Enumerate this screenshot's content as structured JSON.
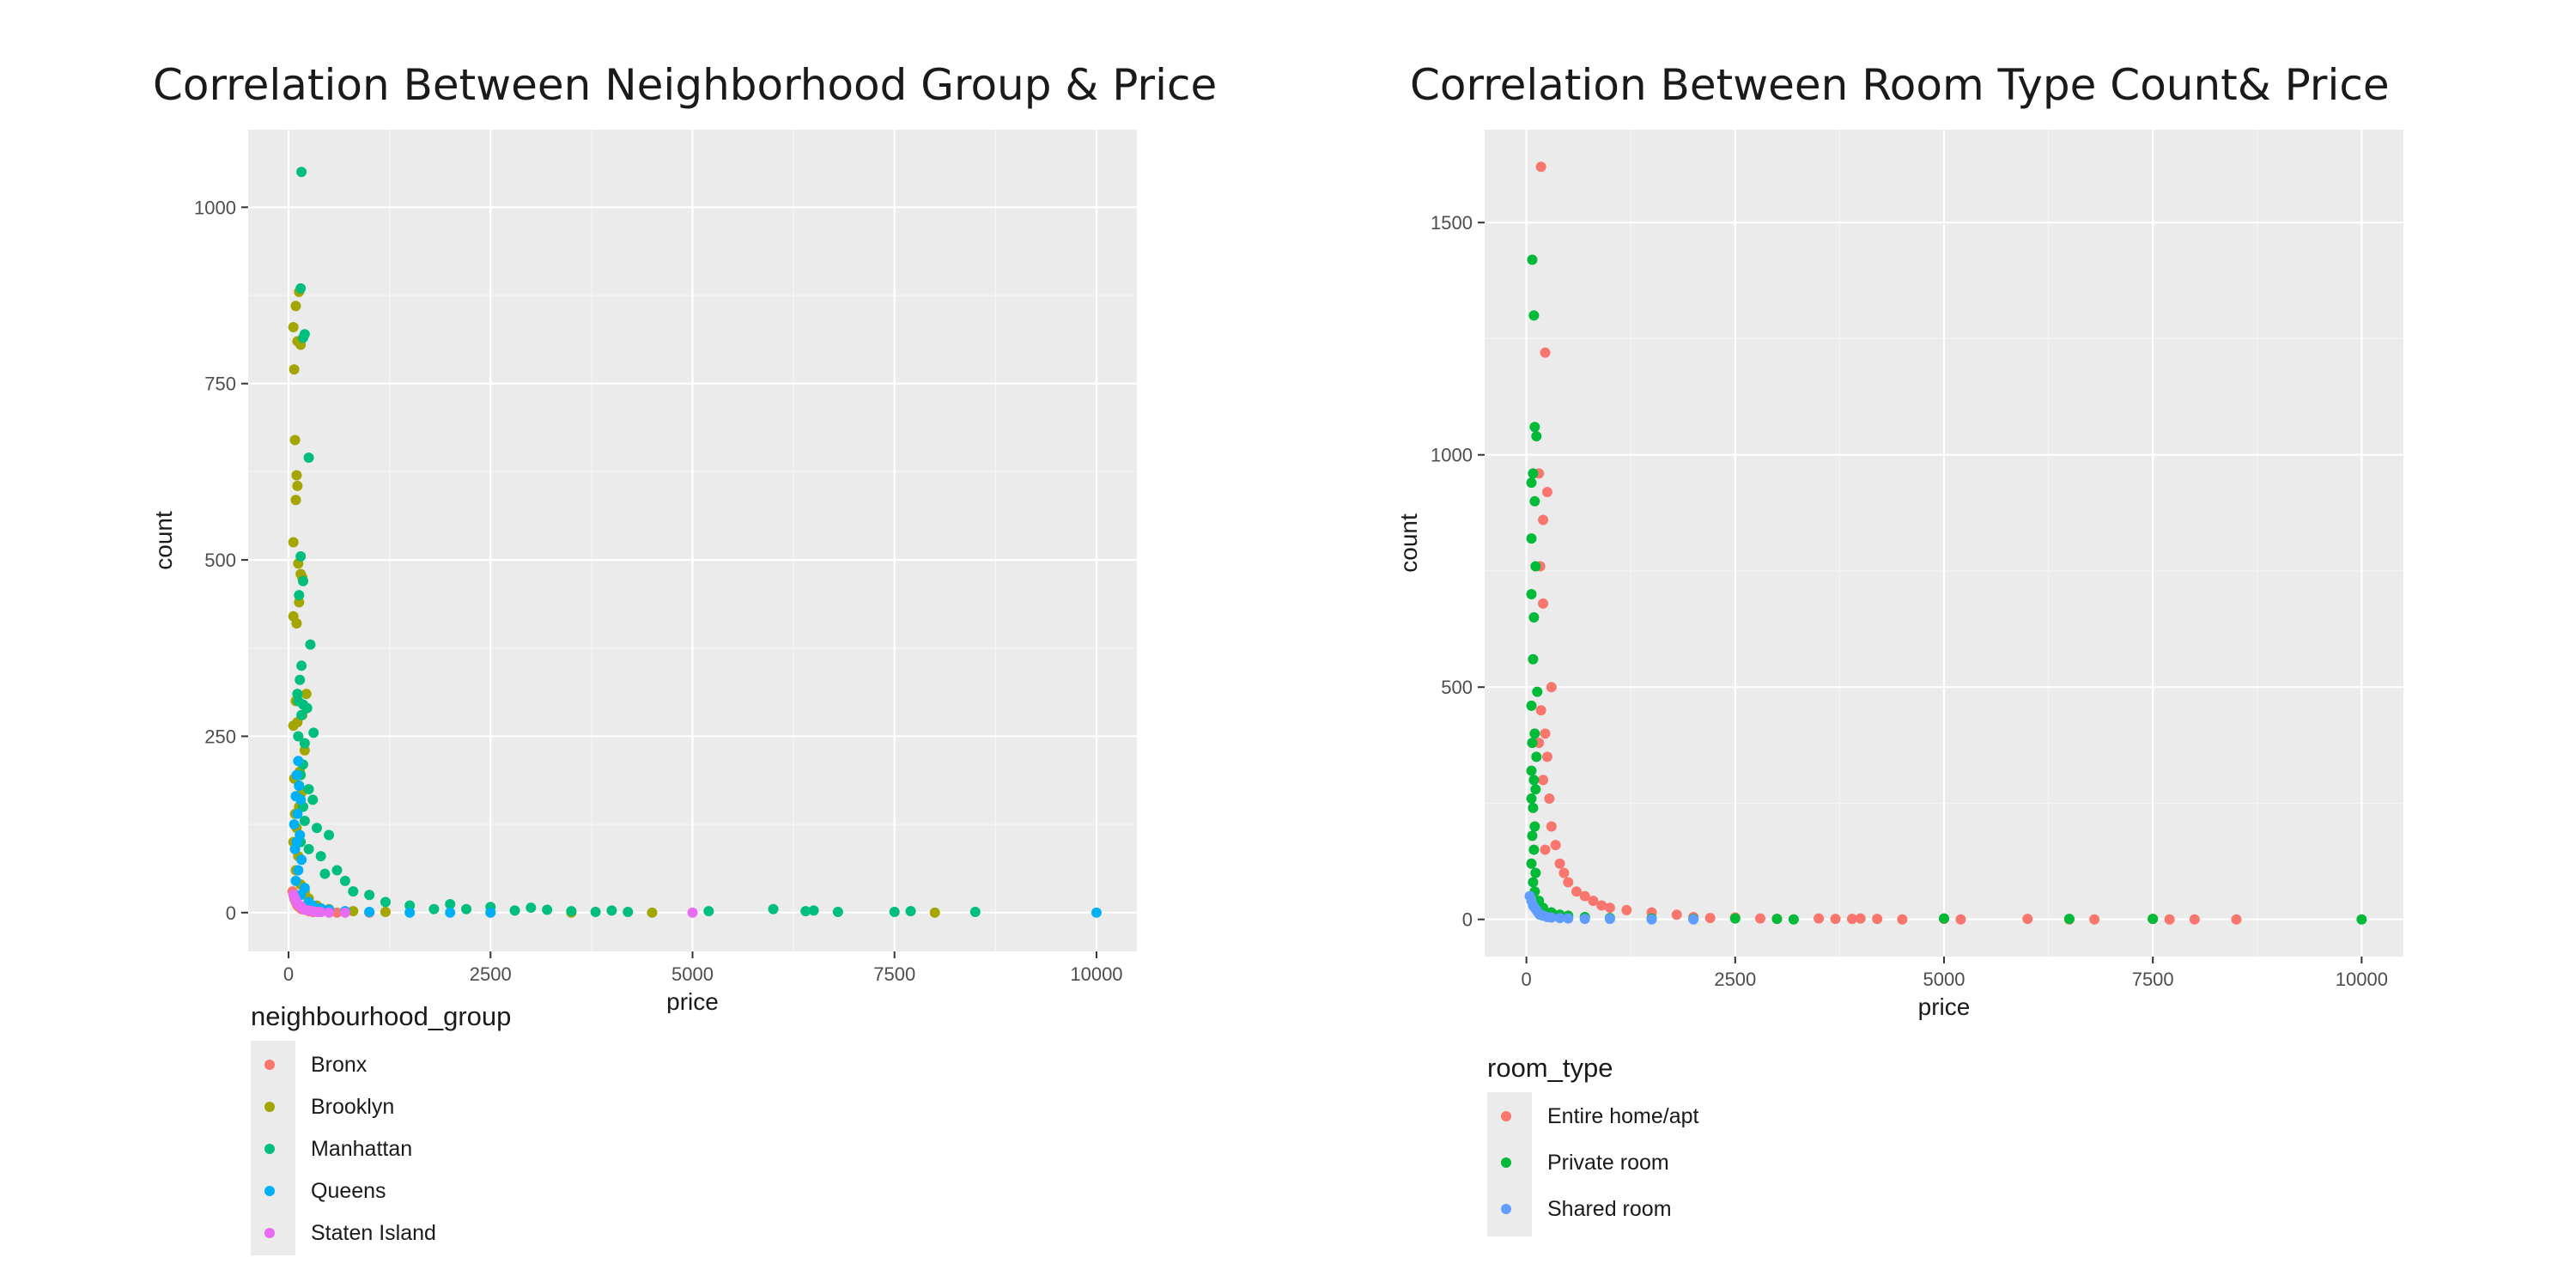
{
  "chart_data": [
    {
      "type": "scatter",
      "title": "Correlation Between Neighborhood Group & Price",
      "xlabel": "price",
      "ylabel": "count",
      "xlim": [
        -500,
        10500
      ],
      "ylim": [
        -55,
        1110
      ],
      "xticks": [
        0,
        2500,
        5000,
        7500,
        10000
      ],
      "yticks": [
        0,
        250,
        500,
        750,
        1000
      ],
      "grid": true,
      "legend": {
        "title": "neighbourhood_group",
        "placement": "bottom-left"
      },
      "series": [
        {
          "name": "Bronx",
          "color": "#F8766D",
          "points": [
            [
              50,
              30
            ],
            [
              70,
              20
            ],
            [
              90,
              15
            ],
            [
              110,
              10
            ],
            [
              130,
              8
            ],
            [
              160,
              5
            ],
            [
              200,
              4
            ],
            [
              250,
              2
            ],
            [
              300,
              1
            ],
            [
              400,
              1
            ],
            [
              600,
              0
            ],
            [
              1000,
              0
            ],
            [
              2500,
              0
            ]
          ]
        },
        {
          "name": "Brooklyn",
          "color": "#A3A500",
          "points": [
            [
              60,
              830
            ],
            [
              70,
              770
            ],
            [
              90,
              860
            ],
            [
              110,
              810
            ],
            [
              130,
              880
            ],
            [
              150,
              805
            ],
            [
              80,
              670
            ],
            [
              100,
              620
            ],
            [
              110,
              605
            ],
            [
              90,
              585
            ],
            [
              60,
              525
            ],
            [
              150,
              480
            ],
            [
              170,
              475
            ],
            [
              120,
              495
            ],
            [
              130,
              440
            ],
            [
              60,
              420
            ],
            [
              100,
              410
            ],
            [
              220,
              310
            ],
            [
              90,
              300
            ],
            [
              170,
              280
            ],
            [
              60,
              265
            ],
            [
              110,
              270
            ],
            [
              200,
              230
            ],
            [
              140,
              200
            ],
            [
              70,
              190
            ],
            [
              160,
              170
            ],
            [
              80,
              140
            ],
            [
              130,
              150
            ],
            [
              100,
              120
            ],
            [
              60,
              100
            ],
            [
              120,
              80
            ],
            [
              90,
              60
            ],
            [
              150,
              40
            ],
            [
              200,
              30
            ],
            [
              250,
              20
            ],
            [
              350,
              10
            ],
            [
              500,
              5
            ],
            [
              800,
              2
            ],
            [
              1200,
              1
            ],
            [
              2500,
              1
            ],
            [
              3500,
              0
            ],
            [
              4500,
              0
            ],
            [
              8000,
              0
            ]
          ]
        },
        {
          "name": "Manhattan",
          "color": "#00BF7D",
          "points": [
            [
              160,
              1050
            ],
            [
              150,
              885
            ],
            [
              200,
              820
            ],
            [
              180,
              815
            ],
            [
              250,
              645
            ],
            [
              150,
              505
            ],
            [
              180,
              470
            ],
            [
              130,
              450
            ],
            [
              270,
              380
            ],
            [
              160,
              350
            ],
            [
              140,
              330
            ],
            [
              110,
              310
            ],
            [
              120,
              300
            ],
            [
              180,
              295
            ],
            [
              230,
              290
            ],
            [
              160,
              280
            ],
            [
              310,
              255
            ],
            [
              120,
              250
            ],
            [
              200,
              240
            ],
            [
              180,
              210
            ],
            [
              150,
              195
            ],
            [
              130,
              180
            ],
            [
              250,
              175
            ],
            [
              300,
              160
            ],
            [
              180,
              150
            ],
            [
              200,
              130
            ],
            [
              350,
              120
            ],
            [
              500,
              110
            ],
            [
              150,
              100
            ],
            [
              250,
              90
            ],
            [
              400,
              80
            ],
            [
              600,
              60
            ],
            [
              450,
              55
            ],
            [
              700,
              45
            ],
            [
              800,
              30
            ],
            [
              1000,
              25
            ],
            [
              1200,
              15
            ],
            [
              1500,
              10
            ],
            [
              1800,
              5
            ],
            [
              2000,
              12
            ],
            [
              2200,
              5
            ],
            [
              2500,
              8
            ],
            [
              2800,
              3
            ],
            [
              3000,
              7
            ],
            [
              3200,
              4
            ],
            [
              3500,
              2
            ],
            [
              3800,
              1
            ],
            [
              4000,
              3
            ],
            [
              4200,
              1
            ],
            [
              5200,
              2
            ],
            [
              6000,
              5
            ],
            [
              6400,
              2
            ],
            [
              6500,
              3
            ],
            [
              6800,
              1
            ],
            [
              7500,
              1
            ],
            [
              7700,
              2
            ],
            [
              8500,
              1
            ]
          ]
        },
        {
          "name": "Queens",
          "color": "#00B0F6",
          "points": [
            [
              120,
              215
            ],
            [
              100,
              195
            ],
            [
              130,
              180
            ],
            [
              90,
              165
            ],
            [
              150,
              160
            ],
            [
              110,
              140
            ],
            [
              70,
              125
            ],
            [
              140,
              110
            ],
            [
              100,
              100
            ],
            [
              80,
              90
            ],
            [
              160,
              75
            ],
            [
              120,
              60
            ],
            [
              90,
              45
            ],
            [
              200,
              35
            ],
            [
              150,
              25
            ],
            [
              250,
              15
            ],
            [
              300,
              10
            ],
            [
              400,
              6
            ],
            [
              500,
              4
            ],
            [
              700,
              2
            ],
            [
              1000,
              1
            ],
            [
              1500,
              0
            ],
            [
              2000,
              0
            ],
            [
              2500,
              0
            ],
            [
              10000,
              0
            ]
          ]
        },
        {
          "name": "Staten Island",
          "color": "#E76BF3",
          "points": [
            [
              60,
              25
            ],
            [
              80,
              20
            ],
            [
              100,
              15
            ],
            [
              120,
              12
            ],
            [
              140,
              10
            ],
            [
              160,
              8
            ],
            [
              180,
              6
            ],
            [
              200,
              4
            ],
            [
              250,
              3
            ],
            [
              300,
              2
            ],
            [
              350,
              1
            ],
            [
              400,
              1
            ],
            [
              500,
              0
            ],
            [
              700,
              0
            ],
            [
              5000,
              0
            ]
          ]
        }
      ]
    },
    {
      "type": "scatter",
      "title": "Correlation Between Room Type Count& Price",
      "xlabel": "price",
      "ylabel": "count",
      "xlim": [
        -500,
        10500
      ],
      "ylim": [
        -80,
        1700
      ],
      "xticks": [
        0,
        2500,
        5000,
        7500,
        10000
      ],
      "yticks": [
        0,
        500,
        1000,
        1500
      ],
      "grid": true,
      "legend": {
        "title": "room_type",
        "placement": "bottom-left"
      },
      "series": [
        {
          "name": "Entire home/apt",
          "color": "#F8766D",
          "points": [
            [
              175,
              1620
            ],
            [
              225,
              1220
            ],
            [
              250,
              920
            ],
            [
              150,
              960
            ],
            [
              200,
              860
            ],
            [
              165,
              760
            ],
            [
              200,
              680
            ],
            [
              300,
              500
            ],
            [
              175,
              450
            ],
            [
              225,
              400
            ],
            [
              150,
              380
            ],
            [
              250,
              350
            ],
            [
              200,
              300
            ],
            [
              275,
              260
            ],
            [
              300,
              200
            ],
            [
              350,
              160
            ],
            [
              225,
              150
            ],
            [
              400,
              120
            ],
            [
              450,
              100
            ],
            [
              500,
              80
            ],
            [
              600,
              60
            ],
            [
              700,
              50
            ],
            [
              800,
              40
            ],
            [
              900,
              30
            ],
            [
              1000,
              25
            ],
            [
              1200,
              20
            ],
            [
              1500,
              15
            ],
            [
              1800,
              10
            ],
            [
              2000,
              5
            ],
            [
              2200,
              3
            ],
            [
              2500,
              4
            ],
            [
              2800,
              2
            ],
            [
              3000,
              1
            ],
            [
              3500,
              2
            ],
            [
              3700,
              1
            ],
            [
              3900,
              1
            ],
            [
              4000,
              2
            ],
            [
              4200,
              1
            ],
            [
              4500,
              0
            ],
            [
              5000,
              1
            ],
            [
              5200,
              0
            ],
            [
              6000,
              1
            ],
            [
              6500,
              0
            ],
            [
              6800,
              0
            ],
            [
              7500,
              1
            ],
            [
              7700,
              0
            ],
            [
              8000,
              0
            ],
            [
              8500,
              0
            ]
          ]
        },
        {
          "name": "Private room",
          "color": "#00BA38",
          "points": [
            [
              70,
              1420
            ],
            [
              90,
              1300
            ],
            [
              100,
              1060
            ],
            [
              120,
              1040
            ],
            [
              80,
              960
            ],
            [
              60,
              940
            ],
            [
              100,
              900
            ],
            [
              60,
              820
            ],
            [
              110,
              760
            ],
            [
              60,
              700
            ],
            [
              90,
              650
            ],
            [
              80,
              560
            ],
            [
              130,
              490
            ],
            [
              60,
              460
            ],
            [
              100,
              400
            ],
            [
              70,
              380
            ],
            [
              120,
              350
            ],
            [
              60,
              320
            ],
            [
              90,
              300
            ],
            [
              110,
              280
            ],
            [
              60,
              260
            ],
            [
              80,
              240
            ],
            [
              100,
              200
            ],
            [
              70,
              180
            ],
            [
              90,
              150
            ],
            [
              60,
              120
            ],
            [
              110,
              100
            ],
            [
              80,
              80
            ],
            [
              100,
              60
            ],
            [
              150,
              40
            ],
            [
              200,
              25
            ],
            [
              300,
              15
            ],
            [
              400,
              10
            ],
            [
              500,
              8
            ],
            [
              700,
              5
            ],
            [
              1000,
              3
            ],
            [
              1500,
              2
            ],
            [
              2000,
              1
            ],
            [
              2500,
              2
            ],
            [
              3000,
              1
            ],
            [
              3200,
              0
            ],
            [
              5000,
              2
            ],
            [
              6500,
              1
            ],
            [
              7500,
              1
            ],
            [
              10000,
              0
            ]
          ]
        },
        {
          "name": "Shared room",
          "color": "#619CFF",
          "points": [
            [
              40,
              50
            ],
            [
              60,
              40
            ],
            [
              80,
              30
            ],
            [
              100,
              25
            ],
            [
              120,
              20
            ],
            [
              140,
              15
            ],
            [
              160,
              10
            ],
            [
              200,
              8
            ],
            [
              250,
              5
            ],
            [
              300,
              4
            ],
            [
              400,
              3
            ],
            [
              500,
              2
            ],
            [
              700,
              1
            ],
            [
              1000,
              1
            ],
            [
              1500,
              0
            ],
            [
              2000,
              0
            ]
          ]
        }
      ]
    }
  ]
}
